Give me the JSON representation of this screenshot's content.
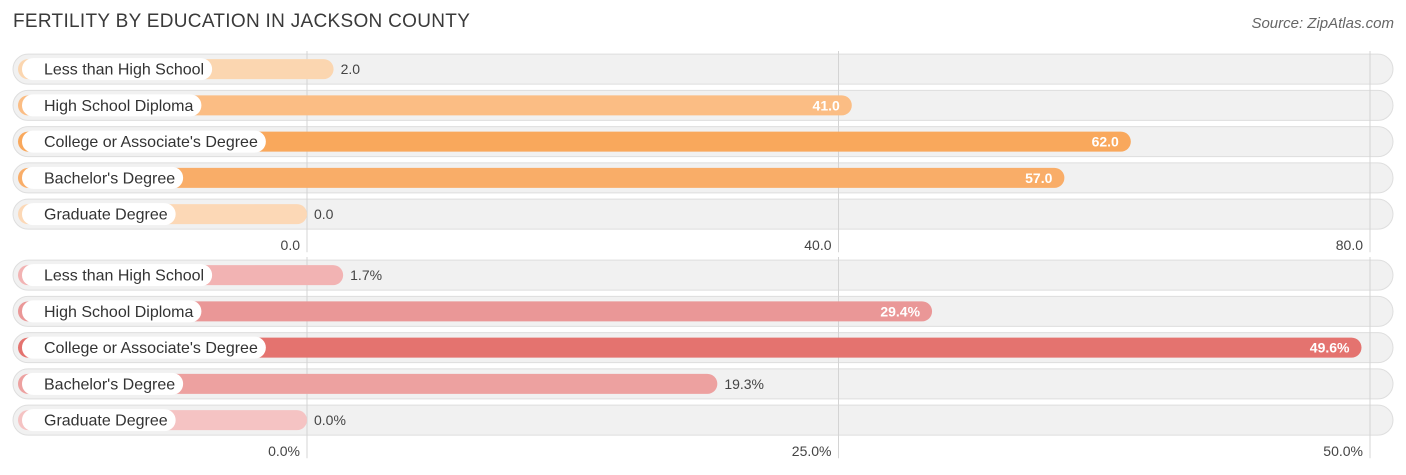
{
  "title": "FERTILITY BY EDUCATION IN JACKSON COUNTY",
  "source": "Source: ZipAtlas.com",
  "chart_data": [
    {
      "type": "bar",
      "orientation": "horizontal",
      "categories": [
        "Less than High School",
        "High School Diploma",
        "College or Associate's Degree",
        "Bachelor's Degree",
        "Graduate Degree"
      ],
      "values": [
        2.0,
        41.0,
        62.0,
        57.0,
        0.0
      ],
      "value_labels": [
        "2.0",
        "41.0",
        "62.0",
        "57.0",
        "0.0"
      ],
      "xlim": [
        0,
        80
      ],
      "ticks": [
        0,
        40,
        80
      ],
      "tick_labels": [
        "0.0",
        "40.0",
        "80.0"
      ],
      "colors": [
        "#fbd6b0",
        "#fbbd84",
        "#f9a85c",
        "#f9ad68",
        "#fcd8b6"
      ],
      "grid": true
    },
    {
      "type": "bar",
      "orientation": "horizontal",
      "categories": [
        "Less than High School",
        "High School Diploma",
        "College or Associate's Degree",
        "Bachelor's Degree",
        "Graduate Degree"
      ],
      "values": [
        1.7,
        29.4,
        49.6,
        19.3,
        0.0
      ],
      "value_labels": [
        "1.7%",
        "29.4%",
        "49.6%",
        "19.3%",
        "0.0%"
      ],
      "xlim": [
        0,
        50
      ],
      "ticks": [
        0,
        25,
        50
      ],
      "tick_labels": [
        "0.0%",
        "25.0%",
        "50.0%"
      ],
      "colors": [
        "#f2b3b3",
        "#ea9797",
        "#e4736f",
        "#eda1a0",
        "#f5c3c3"
      ],
      "grid": true
    }
  ]
}
